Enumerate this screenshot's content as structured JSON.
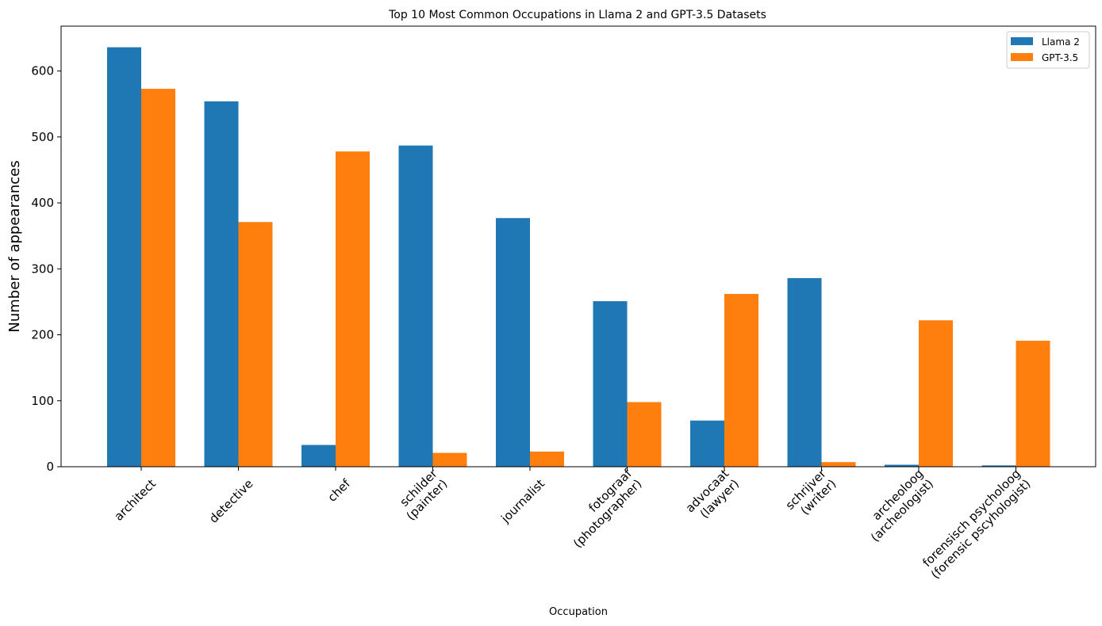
{
  "chart_data": {
    "type": "bar",
    "title": "Top 10 Most Common Occupations in Llama 2 and GPT-3.5 Datasets",
    "xlabel": "Occupation",
    "ylabel": "Number of appearances",
    "categories": [
      [
        "architect"
      ],
      [
        "detective"
      ],
      [
        "chef"
      ],
      [
        "schilder",
        "(painter)"
      ],
      [
        "journalist"
      ],
      [
        "fotograaf",
        "(photographer)"
      ],
      [
        "advocaat",
        "(lawyer)"
      ],
      [
        "schrijver",
        "(writer)"
      ],
      [
        "archeoloog",
        "(archeologist)"
      ],
      [
        "forensisch psycholoog",
        "(forensic pscyhologist)"
      ]
    ],
    "series": [
      {
        "name": "Llama 2",
        "color": "#1f77b4",
        "values": [
          636,
          554,
          33,
          487,
          377,
          251,
          70,
          286,
          3,
          2
        ]
      },
      {
        "name": "GPT-3.5",
        "color": "#ff7f0e",
        "values": [
          573,
          371,
          478,
          21,
          23,
          98,
          262,
          7,
          222,
          191
        ]
      }
    ],
    "ylim": [
      0,
      668
    ],
    "yticks": [
      0,
      100,
      200,
      300,
      400,
      500,
      600
    ],
    "grid": false,
    "legend_position": "top-right"
  }
}
